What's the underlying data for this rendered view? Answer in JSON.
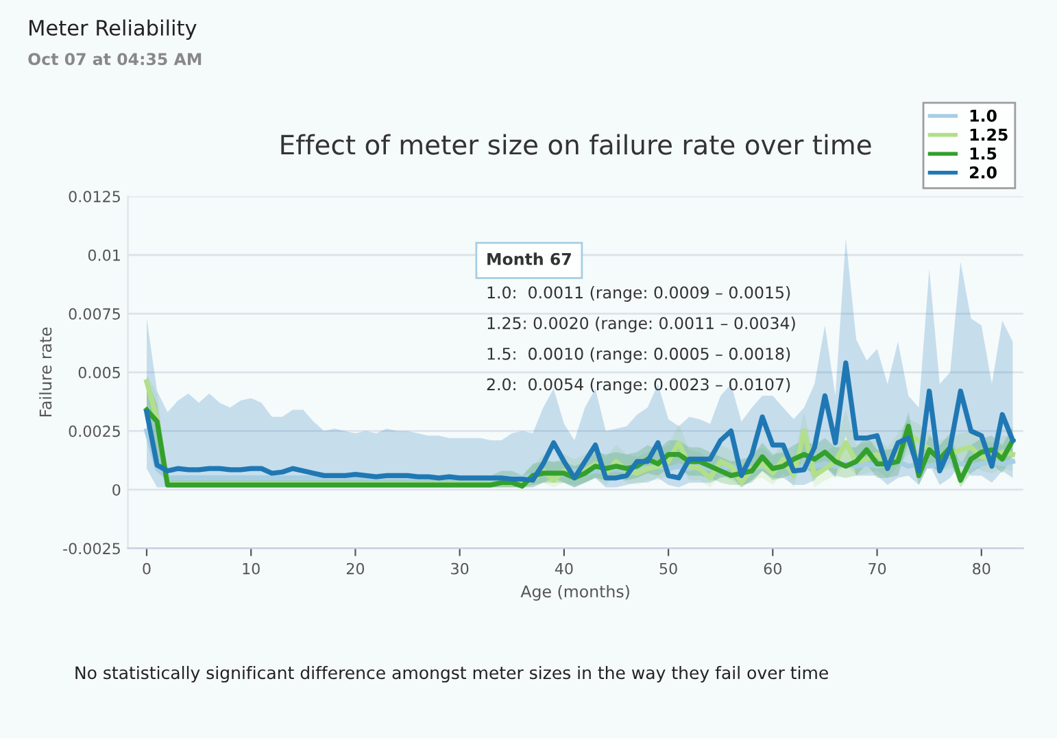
{
  "chart_data": {
    "type": "line",
    "title": "Effect of meter size on failure rate over time",
    "xlabel": "Age (months)",
    "ylabel": "Failure rate",
    "annotations": [
      "Meter Reliability",
      "Oct 07 at 04:35 AM",
      "Month 67",
      "1.0:  0.0011 (range: 0.0009 – 0.0015)",
      "1.25: 0.0020 (range: 0.0011 – 0.0034)",
      "1.5:  0.0010 (range: 0.0005 – 0.0018)",
      "2.0:  0.0054 (range: 0.0023 – 0.0107)",
      "No statistically significant difference amongst meter sizes in the way they fail over time"
    ],
    "x": [
      0,
      1,
      2,
      3,
      4,
      5,
      6,
      7,
      8,
      9,
      10,
      11,
      12,
      13,
      14,
      15,
      16,
      17,
      18,
      19,
      20,
      21,
      22,
      23,
      24,
      25,
      26,
      27,
      28,
      29,
      30,
      31,
      32,
      33,
      34,
      35,
      36,
      37,
      38,
      39,
      40,
      41,
      42,
      43,
      44,
      45,
      46,
      47,
      48,
      49,
      50,
      51,
      52,
      53,
      54,
      55,
      56,
      57,
      58,
      59,
      60,
      61,
      62,
      63,
      64,
      65,
      66,
      67,
      68,
      69,
      70,
      71,
      72,
      73,
      74,
      75,
      76,
      77,
      78,
      79,
      80,
      81,
      82,
      83
    ],
    "xlim": [
      -1.8,
      84
    ],
    "xticks": [
      0,
      10,
      20,
      30,
      40,
      50,
      60,
      70,
      80
    ],
    "ylim": [
      -0.0025,
      0.0125
    ],
    "yticks": [
      -0.0025,
      0,
      0.0025,
      0.005,
      0.0075,
      0.01,
      0.0125
    ],
    "grid": "y",
    "legend": "top right",
    "marker": "none",
    "line_style": "solid",
    "series": [
      {
        "name": "1.0",
        "color": "#a6cee3",
        "values": [
          0.0025,
          0.0009,
          0.0005,
          0.0005,
          0.0005,
          0.0005,
          0.0005,
          0.0005,
          0.0005,
          0.0005,
          0.0005,
          0.0005,
          0.0005,
          0.0005,
          0.0005,
          0.0005,
          0.0005,
          0.0005,
          0.0005,
          0.0005,
          0.0005,
          0.0005,
          0.0005,
          0.0005,
          0.0005,
          0.0005,
          0.0005,
          0.0005,
          0.0005,
          0.0005,
          0.0005,
          0.0005,
          0.0005,
          0.0005,
          0.0005,
          0.0005,
          0.0005,
          0.0006,
          0.0007,
          0.0006,
          0.0007,
          0.0008,
          0.0007,
          0.0008,
          0.0008,
          0.0009,
          0.0008,
          0.0009,
          0.0009,
          0.001,
          0.0009,
          0.001,
          0.0009,
          0.001,
          0.0009,
          0.0009,
          0.001,
          0.0008,
          0.0009,
          0.001,
          0.0009,
          0.001,
          0.0009,
          0.001,
          0.001,
          0.0011,
          0.001,
          0.0011,
          0.001,
          0.0011,
          0.001,
          0.0011,
          0.0012,
          0.001,
          0.0011,
          0.001,
          0.0011,
          0.0012,
          0.0011,
          0.001,
          0.0011,
          0.0012,
          0.0011,
          0.0012
        ]
      },
      {
        "name": "1.25",
        "color": "#b2df8a",
        "values": [
          0.0046,
          0.003,
          0.00025,
          0.00025,
          0.00025,
          0.00025,
          0.00025,
          0.00025,
          0.00025,
          0.00025,
          0.00025,
          0.00025,
          0.00025,
          0.00025,
          0.00025,
          0.00025,
          0.00025,
          0.00025,
          0.00025,
          0.00025,
          0.00025,
          0.00025,
          0.00025,
          0.00025,
          0.00025,
          0.00025,
          0.00025,
          0.00025,
          0.00025,
          0.00025,
          0.00025,
          0.00025,
          0.00025,
          0.00025,
          0.00025,
          0.00025,
          0.00025,
          0.0004,
          0.0008,
          0.0004,
          0.0008,
          0.0006,
          0.0008,
          0.0011,
          0.0007,
          0.0012,
          0.0008,
          0.0007,
          0.0009,
          0.001,
          0.0012,
          0.002,
          0.001,
          0.0009,
          0.0005,
          0.0012,
          0.001,
          0.0003,
          0.0009,
          0.0011,
          0.0007,
          0.0013,
          0.0006,
          0.0025,
          0.0006,
          0.0009,
          0.0012,
          0.002,
          0.0012,
          0.0013,
          0.0015,
          0.0011,
          0.0017,
          0.0023,
          0.0021,
          0.0017,
          0.0014,
          0.0015,
          0.0017,
          0.0018,
          0.0014,
          0.0013,
          0.0016,
          0.0015
        ],
        "lower": [
          0.0035,
          0.0012,
          0.0001,
          0.0001,
          0.0001,
          0.0001,
          0.0001,
          0.0001,
          0.0001,
          0.0001,
          0.0001,
          0.0001,
          0.0001,
          0.0001,
          0.0001,
          0.0001,
          0.0001,
          0.0001,
          0.0001,
          0.0001,
          0.0001,
          0.0001,
          0.0001,
          0.0001,
          0.0001,
          0.0001,
          0.0001,
          0.0001,
          0.0001,
          0.0001,
          0.0001,
          0.0001,
          0.0001,
          0.0001,
          0.0001,
          0.0001,
          0.0001,
          0.0001,
          0.0003,
          0.0001,
          0.0003,
          0.0002,
          0.0003,
          0.0005,
          0.0002,
          0.0006,
          0.0003,
          0.0002,
          0.0004,
          0.0004,
          0.0006,
          0.0012,
          0.0004,
          0.0004,
          0.0001,
          0.0006,
          0.0004,
          0.0001,
          0.0004,
          0.0005,
          0.0002,
          0.0007,
          0.0001,
          0.0016,
          0.0001,
          0.0004,
          0.0006,
          0.0011,
          0.0006,
          0.0007,
          0.0008,
          0.0005,
          0.001,
          0.0015,
          0.0014,
          0.001,
          0.0008,
          0.0009,
          0.001,
          0.0011,
          0.0008,
          0.0007,
          0.0009,
          0.0008
        ],
        "upper": [
          0.0049,
          0.0041,
          0.0006,
          0.0006,
          0.0006,
          0.0006,
          0.0006,
          0.0006,
          0.0006,
          0.0006,
          0.0006,
          0.0006,
          0.0006,
          0.0006,
          0.0006,
          0.0006,
          0.0006,
          0.0006,
          0.0006,
          0.0006,
          0.0006,
          0.0006,
          0.0006,
          0.0006,
          0.0006,
          0.0006,
          0.0006,
          0.0006,
          0.0006,
          0.0006,
          0.0006,
          0.0006,
          0.0006,
          0.0006,
          0.0006,
          0.0006,
          0.0006,
          0.001,
          0.0015,
          0.0011,
          0.0015,
          0.0013,
          0.0015,
          0.0018,
          0.0014,
          0.0019,
          0.0015,
          0.0014,
          0.0016,
          0.0017,
          0.0019,
          0.0028,
          0.0017,
          0.0016,
          0.0012,
          0.0019,
          0.0017,
          0.001,
          0.0016,
          0.0018,
          0.0014,
          0.002,
          0.0013,
          0.0033,
          0.0013,
          0.0016,
          0.0019,
          0.0034,
          0.0019,
          0.002,
          0.0022,
          0.0018,
          0.0024,
          0.003,
          0.0028,
          0.0024,
          0.0021,
          0.0022,
          0.0024,
          0.0025,
          0.0021,
          0.002,
          0.0023,
          0.0022
        ]
      },
      {
        "name": "1.5",
        "color": "#33a02c",
        "values": [
          0.0034,
          0.0029,
          0.0002,
          0.0002,
          0.0002,
          0.0002,
          0.0002,
          0.0002,
          0.0002,
          0.0002,
          0.0002,
          0.0002,
          0.0002,
          0.0002,
          0.0002,
          0.0002,
          0.0002,
          0.0002,
          0.0002,
          0.0002,
          0.0002,
          0.0002,
          0.0002,
          0.0002,
          0.0002,
          0.0002,
          0.0002,
          0.0002,
          0.0002,
          0.0002,
          0.0002,
          0.0002,
          0.0002,
          0.0002,
          0.0003,
          0.0003,
          0.00015,
          0.0006,
          0.0007,
          0.0007,
          0.0007,
          0.0005,
          0.0007,
          0.001,
          0.0009,
          0.001,
          0.0009,
          0.001,
          0.0013,
          0.0011,
          0.0015,
          0.0015,
          0.0012,
          0.0012,
          0.001,
          0.0008,
          0.0006,
          0.0007,
          0.0008,
          0.0014,
          0.0009,
          0.001,
          0.0013,
          0.0015,
          0.0013,
          0.0016,
          0.0012,
          0.001,
          0.0012,
          0.0017,
          0.0011,
          0.0011,
          0.0012,
          0.0027,
          0.0006,
          0.0017,
          0.0013,
          0.0018,
          0.0004,
          0.0013,
          0.0016,
          0.0017,
          0.0013,
          0.0021
        ],
        "lower": [
          0.0022,
          0.0015,
          0.0001,
          0.0001,
          0.0001,
          0.0001,
          0.0001,
          0.0001,
          0.0001,
          0.0001,
          0.0001,
          0.0001,
          0.0001,
          0.0001,
          0.0001,
          0.0001,
          0.0001,
          0.0001,
          0.0001,
          0.0001,
          0.0001,
          0.0001,
          0.0001,
          0.0001,
          0.0001,
          0.0001,
          0.0001,
          0.0001,
          0.0001,
          0.0001,
          0.0001,
          0.0001,
          0.0001,
          0.0001,
          0.0001,
          0.0001,
          0.0001,
          0.0002,
          0.0003,
          0.0003,
          0.0003,
          0.0001,
          0.0003,
          0.0005,
          0.0004,
          0.0005,
          0.0004,
          0.0005,
          0.0007,
          0.0006,
          0.0009,
          0.0009,
          0.0006,
          0.0006,
          0.0005,
          0.0003,
          0.0002,
          0.0002,
          0.0003,
          0.0008,
          0.0004,
          0.0005,
          0.0007,
          0.0009,
          0.0007,
          0.001,
          0.0006,
          0.0005,
          0.0006,
          0.0011,
          0.0005,
          0.0005,
          0.0006,
          0.002,
          0.0002,
          0.0011,
          0.0007,
          0.0012,
          0.0001,
          0.0007,
          0.001,
          0.0011,
          0.0007,
          0.0015
        ],
        "upper": [
          0.0048,
          0.0036,
          0.0006,
          0.0006,
          0.0006,
          0.0006,
          0.0006,
          0.0006,
          0.0006,
          0.0006,
          0.0006,
          0.0006,
          0.0006,
          0.0006,
          0.0006,
          0.0006,
          0.0006,
          0.0006,
          0.0006,
          0.0006,
          0.0006,
          0.0006,
          0.0006,
          0.0006,
          0.0006,
          0.0006,
          0.0006,
          0.0006,
          0.0006,
          0.0006,
          0.0006,
          0.0006,
          0.0006,
          0.0006,
          0.0008,
          0.0008,
          0.0006,
          0.0011,
          0.0012,
          0.0012,
          0.0012,
          0.001,
          0.0012,
          0.0016,
          0.0015,
          0.0016,
          0.0015,
          0.0016,
          0.0019,
          0.0017,
          0.0021,
          0.0021,
          0.0018,
          0.0018,
          0.0016,
          0.0014,
          0.0012,
          0.0013,
          0.0014,
          0.002,
          0.0015,
          0.0016,
          0.0019,
          0.0021,
          0.0019,
          0.0022,
          0.0018,
          0.0018,
          0.0018,
          0.0023,
          0.0017,
          0.0017,
          0.0018,
          0.0033,
          0.0012,
          0.0023,
          0.0019,
          0.0024,
          0.001,
          0.0019,
          0.0022,
          0.0023,
          0.0019,
          0.0027
        ]
      },
      {
        "name": "2.0",
        "color": "#1f78b4",
        "values": [
          0.0033,
          0.00105,
          0.0008,
          0.0009,
          0.00085,
          0.00085,
          0.0009,
          0.0009,
          0.00085,
          0.00085,
          0.0009,
          0.0009,
          0.0007,
          0.00075,
          0.0009,
          0.0008,
          0.0007,
          0.0006,
          0.0006,
          0.0006,
          0.00065,
          0.0006,
          0.00055,
          0.0006,
          0.0006,
          0.0006,
          0.00055,
          0.00055,
          0.0005,
          0.00055,
          0.0005,
          0.0005,
          0.0005,
          0.0005,
          0.0005,
          0.00045,
          0.00045,
          0.0004,
          0.0011,
          0.002,
          0.0012,
          0.0005,
          0.0012,
          0.0019,
          0.0005,
          0.0005,
          0.0006,
          0.0012,
          0.0012,
          0.002,
          0.0006,
          0.0005,
          0.0013,
          0.0013,
          0.0013,
          0.0021,
          0.0025,
          0.0006,
          0.0015,
          0.0031,
          0.0019,
          0.0019,
          0.0008,
          0.00085,
          0.0018,
          0.004,
          0.002,
          0.0054,
          0.0022,
          0.0022,
          0.0023,
          0.0009,
          0.002,
          0.0022,
          0.0008,
          0.0042,
          0.0008,
          0.0018,
          0.0042,
          0.0025,
          0.0023,
          0.001,
          0.0032,
          0.0021
        ],
        "lower": [
          0.0009,
          0.0001,
          0.0001,
          0.0001,
          0.0001,
          0.0001,
          0.0001,
          0.0001,
          0.0001,
          0.0001,
          0.0001,
          0.0001,
          0.0001,
          0.0001,
          0.0001,
          0.0001,
          0.0001,
          0.0001,
          0.0001,
          0.0001,
          0.0001,
          0.0001,
          0.0001,
          0.0001,
          0.0001,
          0.0001,
          0.0001,
          0.0001,
          0.0001,
          0.0001,
          0.0001,
          0.0001,
          0.0001,
          0.0001,
          0.0001,
          0.0001,
          0.0001,
          0.0001,
          0.0003,
          0.0005,
          0.0003,
          0.0001,
          0.0003,
          0.0005,
          0.0001,
          0.0001,
          0.0002,
          0.0003,
          0.0003,
          0.0005,
          0.0002,
          0.0001,
          0.0003,
          0.0003,
          0.0003,
          0.0005,
          0.0006,
          0.0001,
          0.0004,
          0.0008,
          0.0005,
          0.0005,
          0.0002,
          0.0002,
          0.0004,
          0.001,
          0.0005,
          0.0023,
          0.0006,
          0.0006,
          0.0006,
          0.0002,
          0.0005,
          0.0006,
          0.0002,
          0.0011,
          0.0002,
          0.0005,
          0.0011,
          0.0006,
          0.0006,
          0.0003,
          0.0008,
          0.0005
        ],
        "upper": [
          0.0073,
          0.0042,
          0.0033,
          0.0038,
          0.0041,
          0.0037,
          0.0041,
          0.0037,
          0.0035,
          0.0038,
          0.0039,
          0.0037,
          0.0031,
          0.0031,
          0.0034,
          0.0034,
          0.0029,
          0.0025,
          0.0026,
          0.0025,
          0.0024,
          0.0025,
          0.0024,
          0.0026,
          0.0025,
          0.0025,
          0.0024,
          0.0023,
          0.0023,
          0.0022,
          0.0022,
          0.0022,
          0.0022,
          0.0021,
          0.0021,
          0.0024,
          0.0025,
          0.0024,
          0.0035,
          0.0043,
          0.0028,
          0.0021,
          0.0035,
          0.0043,
          0.0025,
          0.0026,
          0.0027,
          0.0032,
          0.0035,
          0.0045,
          0.003,
          0.0027,
          0.0031,
          0.003,
          0.0028,
          0.004,
          0.0045,
          0.0029,
          0.0035,
          0.004,
          0.004,
          0.0035,
          0.003,
          0.0035,
          0.0045,
          0.007,
          0.004,
          0.0107,
          0.0064,
          0.0055,
          0.006,
          0.0045,
          0.0063,
          0.004,
          0.0035,
          0.0094,
          0.0045,
          0.005,
          0.0097,
          0.0073,
          0.007,
          0.0045,
          0.0072,
          0.0063
        ]
      }
    ]
  }
}
